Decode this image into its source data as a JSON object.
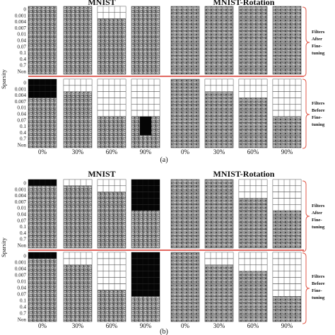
{
  "figure": {
    "accent_line_color": "#d9362b",
    "brace_color": "#e05a4a",
    "panels": [
      {
        "label": "(a)",
        "titles": [
          "MNIST",
          "MNIST-Rotation"
        ],
        "y_axis_label": "Sparsity",
        "sparsity_ticks_upper": [
          "0",
          "0.001",
          "0.004",
          "0.007",
          "0.01",
          "0.04",
          "0.07",
          "0.1",
          "0.4",
          "0.7",
          "Non"
        ],
        "sparsity_ticks_lower": [
          "0",
          "0.001",
          "0.004",
          "0.007",
          "0.01",
          "0.04",
          "0.07",
          "0.1",
          "0.4",
          "0.7",
          "Non"
        ],
        "pruning_levels": [
          "0%",
          "30%",
          "60%",
          "90%"
        ],
        "side_labels": {
          "upper": [
            "Filters",
            "After",
            "Fine-",
            "tuning"
          ],
          "lower": [
            "Filters",
            "Before",
            "Fine-",
            "tuning"
          ]
        },
        "mnist": {
          "upper_dead_rows": [
            0,
            0,
            2,
            0
          ],
          "upper_black_rows": [
            0,
            0,
            0,
            0
          ],
          "lower_dead_rows": [
            0,
            2,
            6,
            6
          ],
          "lower_black_rows": [
            3,
            0,
            0,
            0
          ],
          "lower_black_from_row": [
            0,
            0,
            0,
            6
          ]
        },
        "mnist_rotation": {
          "upper_dead_rows": [
            0,
            0,
            0,
            0
          ],
          "lower_dead_rows": [
            0,
            2,
            3,
            6
          ],
          "lower_dead_tail": [
            0,
            0,
            0,
            2
          ]
        }
      },
      {
        "label": "(b)",
        "titles": [
          "MNIST",
          "MNIST-Rotation"
        ],
        "y_axis_label": "Sparsity",
        "sparsity_ticks_upper": [
          "0",
          "0.001",
          "0.004",
          "0.007",
          "0.01",
          "0.04",
          "0.07",
          "0.1",
          "0.4",
          "0.7",
          "Non"
        ],
        "sparsity_ticks_lower": [
          "0",
          "0.001",
          "0.004",
          "0.007",
          "0.01",
          "0.04",
          "0.07",
          "0.1",
          "0.4",
          "0.7",
          "Non"
        ],
        "pruning_levels": [
          "0%",
          "30%",
          "60%",
          "90%"
        ],
        "side_labels": {
          "upper": [
            "Filters",
            "After",
            "Fine-",
            "tuning"
          ],
          "lower": [
            "Filters",
            "Before",
            "Fine-",
            "tuning"
          ]
        },
        "mnist": {
          "upper_dead_rows": [
            0,
            1,
            2,
            0
          ],
          "upper_black_rows": [
            1,
            0,
            0,
            5
          ],
          "lower_dead_rows": [
            0,
            2,
            6,
            0
          ],
          "lower_black_rows": [
            1,
            0,
            0,
            7
          ]
        },
        "mnist_rotation": {
          "upper_dead_rows": [
            0,
            0,
            3,
            5
          ],
          "lower_dead_rows": [
            0,
            2,
            3,
            7
          ]
        }
      }
    ]
  }
}
